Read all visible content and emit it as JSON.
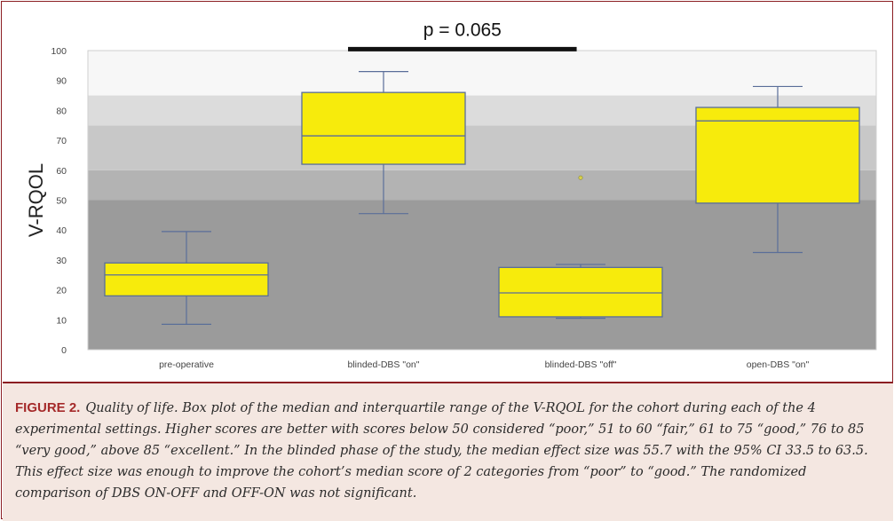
{
  "chart_data": {
    "type": "box",
    "ylabel": "V-RQOL",
    "ylim": [
      0,
      100
    ],
    "yticks": [
      0,
      10,
      20,
      30,
      40,
      50,
      60,
      70,
      80,
      90,
      100
    ],
    "categories": [
      "pre-operative",
      "blinded-DBS \"on\"",
      "blinded-DBS \"off\"",
      "open-DBS \"on\""
    ],
    "boxes": [
      {
        "whisker_low": 8.5,
        "q1": 18,
        "median": 25,
        "q3": 29,
        "whisker_high": 39.5,
        "outliers": []
      },
      {
        "whisker_low": 45.5,
        "q1": 62,
        "median": 71.5,
        "q3": 86,
        "whisker_high": 93,
        "outliers": []
      },
      {
        "whisker_low": 10.5,
        "q1": 11,
        "median": 19,
        "q3": 27.5,
        "whisker_high": 28.5,
        "outliers": [
          57.5
        ]
      },
      {
        "whisker_low": 32.5,
        "q1": 49,
        "median": 76.5,
        "q3": 81,
        "whisker_high": 88,
        "outliers": []
      }
    ],
    "bands": [
      {
        "from": 0,
        "to": 50,
        "color": "#9b9b9b"
      },
      {
        "from": 50,
        "to": 60,
        "color": "#b3b3b3"
      },
      {
        "from": 60,
        "to": 75,
        "color": "#c8c8c8"
      },
      {
        "from": 75,
        "to": 85,
        "color": "#dcdcdc"
      },
      {
        "from": 85,
        "to": 100,
        "color": "#f7f7f7"
      }
    ],
    "annotation": {
      "text": "p = 0.065",
      "from_category": 1,
      "to_category": 2,
      "y": 100.5
    },
    "colors": {
      "box_fill": "#f7eb0c",
      "box_stroke": "#5a6e99",
      "whisker": "#5a6e99",
      "bar": "#111111"
    }
  },
  "caption": {
    "label": "FIGURE 2.",
    "text": "Quality of life. Box plot of the median and interquartile range of the V-RQOL for the cohort during each of the 4 experimental settings. Higher scores are better with scores below 50 considered “poor,” 51 to 60 “fair,” 61 to 75 “good,” 76 to 85 “very good,” above 85 “excellent.” In the blinded phase of the study, the median effect size was 55.7 with the 95% CI 33.5 to 63.5. This effect size was enough to improve the cohort’s median score of 2 categories from “poor” to “good.” The randomized comparison of DBS ON-OFF and OFF-ON was not significant."
  },
  "colors": {
    "frame": "#8b1e22",
    "caption_bg": "#f4e7e1",
    "caption_label": "#a52a2a"
  }
}
